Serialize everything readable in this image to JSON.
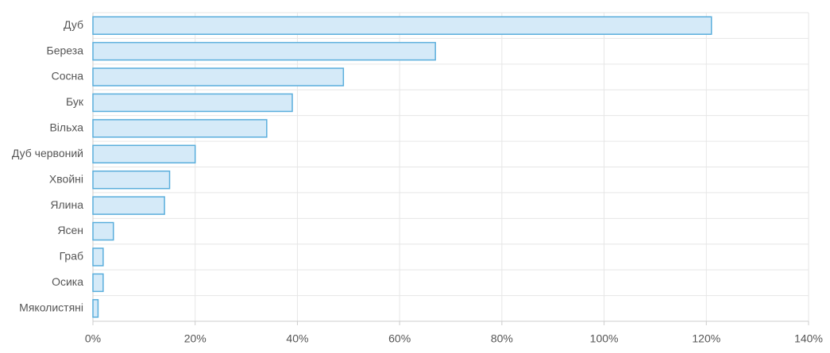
{
  "chart_data": {
    "type": "bar",
    "orientation": "horizontal",
    "categories": [
      "Дуб",
      "Береза",
      "Сосна",
      "Бук",
      "Вільха",
      "Дуб червоний",
      "Хвойні",
      "Ялина",
      "Ясен",
      "Граб",
      "Осика",
      "Мяколистяні"
    ],
    "values": [
      121,
      67,
      49,
      39,
      34,
      20,
      15,
      14,
      4,
      2,
      2,
      1
    ],
    "color": "#d5eaf8",
    "edge_color": "#5aaedc",
    "xlim": [
      0,
      140
    ],
    "xticks": [
      {
        "value": 0,
        "label": "0%"
      },
      {
        "value": 20,
        "label": "20%"
      },
      {
        "value": 40,
        "label": "40%"
      },
      {
        "value": 60,
        "label": "60%"
      },
      {
        "value": 80,
        "label": "80%"
      },
      {
        "value": 100,
        "label": "100%"
      },
      {
        "value": 120,
        "label": "120%"
      },
      {
        "value": 140,
        "label": "140%"
      }
    ],
    "grid": true
  }
}
